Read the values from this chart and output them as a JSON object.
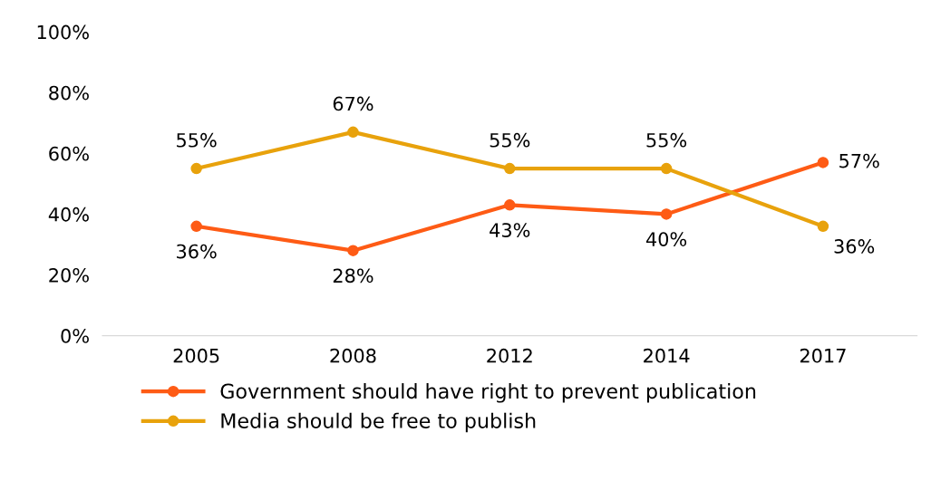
{
  "chart_data": {
    "type": "line",
    "categories": [
      "2005",
      "2008",
      "2012",
      "2014",
      "2017"
    ],
    "series": [
      {
        "name": "Government should have right to prevent publication",
        "color": "#fe5b15",
        "values": [
          36,
          28,
          43,
          40,
          57
        ],
        "value_labels": [
          "36%",
          "28%",
          "43%",
          "40%",
          "57%"
        ]
      },
      {
        "name": "Media should be free to publish",
        "color": "#e8a20c",
        "values": [
          55,
          67,
          55,
          55,
          36
        ],
        "value_labels": [
          "55%",
          "67%",
          "55%",
          "55%",
          "36%"
        ]
      }
    ],
    "ylim": [
      0,
      100
    ],
    "yticks": [
      {
        "value": 0,
        "label": "0%"
      },
      {
        "value": 20,
        "label": "20%"
      },
      {
        "value": 40,
        "label": "40%"
      },
      {
        "value": 60,
        "label": "60%"
      },
      {
        "value": 80,
        "label": "80%"
      },
      {
        "value": 100,
        "label": "100%"
      }
    ],
    "grid": false,
    "legend": "bottom",
    "marker": "circle",
    "line_style": "solid"
  }
}
